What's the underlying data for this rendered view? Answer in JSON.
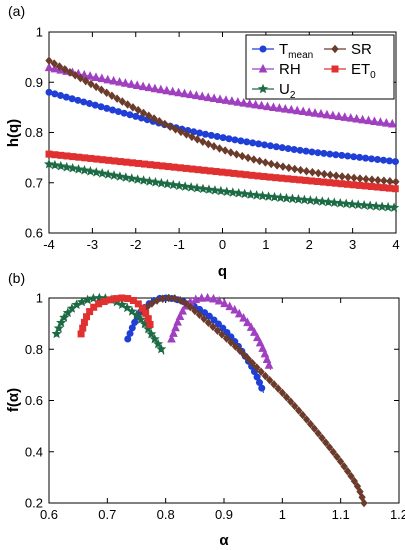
{
  "chart_data": [
    {
      "panel_label": "(a)",
      "type": "line",
      "xlabel": "q",
      "ylabel": "h(q)",
      "xlim": [
        -4,
        4
      ],
      "ylim": [
        0.6,
        1.0
      ],
      "xticks": [
        "-4",
        "-3",
        "-2",
        "-1",
        "0",
        "1",
        "2",
        "3",
        "4"
      ],
      "yticks": [
        "0.6",
        "0.7",
        "0.8",
        "0.9",
        "1"
      ],
      "grid": false,
      "legend_position": "top-right",
      "series": [
        {
          "name": "T",
          "name_sub": "mean",
          "color": "#1f3fd6",
          "marker": "circle",
          "x": [
            -4,
            -3,
            -2,
            -1,
            0,
            1,
            2,
            3,
            4
          ],
          "values": [
            0.88,
            0.856,
            0.832,
            0.808,
            0.79,
            0.775,
            0.762,
            0.752,
            0.742
          ]
        },
        {
          "name": "RH",
          "color": "#a040c0",
          "marker": "triangle",
          "x": [
            -4,
            -3,
            -2,
            -1,
            0,
            1,
            2,
            3,
            4
          ],
          "values": [
            0.929,
            0.911,
            0.894,
            0.879,
            0.865,
            0.852,
            0.84,
            0.828,
            0.816
          ]
        },
        {
          "name": "U",
          "name_sub": "2",
          "color": "#1d6b45",
          "marker": "star",
          "x": [
            -4,
            -3,
            -2,
            -1,
            0,
            1,
            2,
            3,
            4
          ],
          "values": [
            0.737,
            0.722,
            0.707,
            0.694,
            0.683,
            0.673,
            0.665,
            0.657,
            0.65
          ]
        },
        {
          "name": "SR",
          "color": "#6b3b2b",
          "marker": "diamond",
          "x": [
            -4,
            -3,
            -2,
            -1,
            0,
            1,
            2,
            3,
            4
          ],
          "values": [
            0.943,
            0.895,
            0.847,
            0.803,
            0.766,
            0.74,
            0.722,
            0.71,
            0.702
          ]
        },
        {
          "name": "ET",
          "name_sub": "0",
          "color": "#e03030",
          "marker": "square",
          "x": [
            -4,
            -3,
            -2,
            -1,
            0,
            1,
            2,
            3,
            4
          ],
          "values": [
            0.757,
            0.748,
            0.739,
            0.73,
            0.721,
            0.712,
            0.704,
            0.696,
            0.688
          ]
        }
      ]
    },
    {
      "panel_label": "(b)",
      "type": "line",
      "xlabel": "α",
      "ylabel": "f(α)",
      "xlim": [
        0.6,
        1.2
      ],
      "ylim": [
        0.2,
        1.0
      ],
      "xticks": [
        "0.6",
        "0.7",
        "0.8",
        "0.9",
        "1",
        "1.1",
        "1.2"
      ],
      "yticks": [
        "0.2",
        "0.4",
        "0.6",
        "0.8",
        "1"
      ],
      "grid": false,
      "series": [
        {
          "name": "T",
          "name_sub": "mean",
          "color": "#1f3fd6",
          "marker": "circle",
          "x": [
            0.735,
            0.755,
            0.78,
            0.8,
            0.825,
            0.855,
            0.885,
            0.915,
            0.94,
            0.955,
            0.968
          ],
          "values": [
            0.84,
            0.94,
            0.99,
            1.0,
            0.99,
            0.96,
            0.91,
            0.84,
            0.76,
            0.7,
            0.63
          ]
        },
        {
          "name": "RH",
          "color": "#a040c0",
          "marker": "triangle",
          "x": [
            0.81,
            0.825,
            0.84,
            0.865,
            0.89,
            0.92,
            0.945,
            0.965,
            0.98
          ],
          "values": [
            0.84,
            0.93,
            0.98,
            1.0,
            0.99,
            0.95,
            0.89,
            0.81,
            0.72
          ]
        },
        {
          "name": "U",
          "name_sub": "2",
          "color": "#1d6b45",
          "marker": "star",
          "x": [
            0.613,
            0.625,
            0.645,
            0.67,
            0.69,
            0.71,
            0.735,
            0.76,
            0.778,
            0.79,
            0.797
          ],
          "values": [
            0.86,
            0.92,
            0.97,
            0.995,
            1.0,
            0.99,
            0.96,
            0.91,
            0.85,
            0.81,
            0.78
          ]
        },
        {
          "name": "SR",
          "color": "#6b3b2b",
          "marker": "diamond",
          "x": [
            0.76,
            0.785,
            0.81,
            0.83,
            0.85,
            0.88,
            0.92,
            0.96,
            1.0,
            1.04,
            1.08,
            1.11,
            1.13,
            1.14
          ],
          "values": [
            0.95,
            0.99,
            1.0,
            0.985,
            0.95,
            0.89,
            0.81,
            0.72,
            0.63,
            0.53,
            0.42,
            0.33,
            0.26,
            0.2
          ]
        },
        {
          "name": "ET",
          "name_sub": "0",
          "color": "#e03030",
          "marker": "square",
          "x": [
            0.655,
            0.665,
            0.68,
            0.7,
            0.725,
            0.745,
            0.76,
            0.77,
            0.775
          ],
          "values": [
            0.86,
            0.93,
            0.97,
            0.99,
            1.0,
            0.99,
            0.96,
            0.92,
            0.88
          ]
        }
      ]
    }
  ]
}
